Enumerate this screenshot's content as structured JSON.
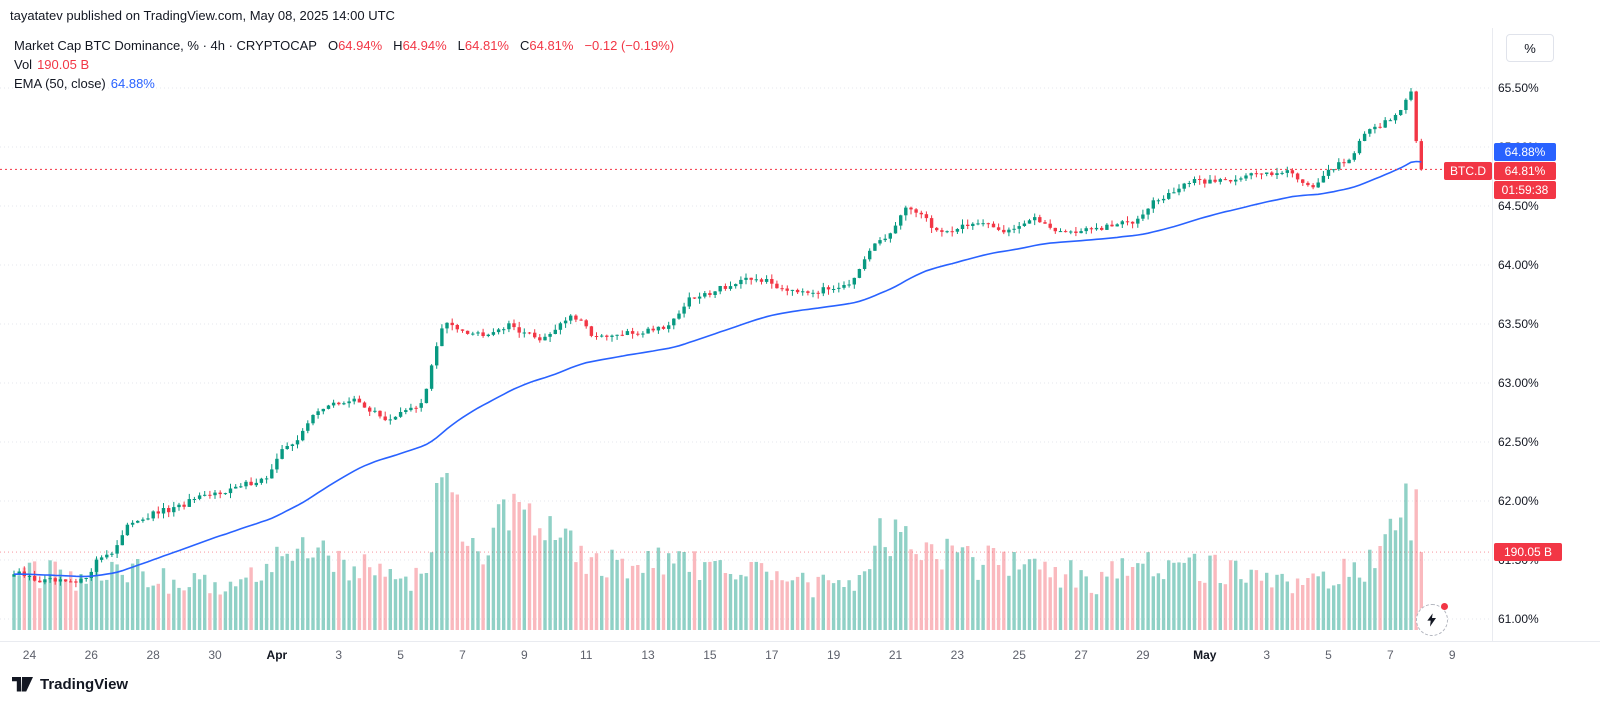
{
  "header": {
    "attribution": "tayatatev published on TradingView.com, May 08, 2025 14:00 UTC",
    "symbol_title": "Market Cap BTC Dominance, % · 4h · CRYPTOCAP",
    "ohlc": [
      {
        "label": "O",
        "value": "64.94%"
      },
      {
        "label": "H",
        "value": "64.94%"
      },
      {
        "label": "L",
        "value": "64.81%"
      },
      {
        "label": "C",
        "value": "64.81%"
      }
    ],
    "change": "−0.12 (−0.19%)",
    "vol_label": "Vol",
    "vol_value": "190.05 B",
    "ema_label": "EMA (50, close)",
    "ema_value": "64.88%"
  },
  "axis": {
    "unit_label": "%"
  },
  "badges": {
    "ema": "64.88%",
    "symbol": "BTC.D",
    "price": "64.81%",
    "countdown": "01:59:38",
    "volume": "190.05 B"
  },
  "x_axis": {
    "labels": [
      {
        "text": "24",
        "day": 0
      },
      {
        "text": "26",
        "day": 2
      },
      {
        "text": "28",
        "day": 4
      },
      {
        "text": "30",
        "day": 6
      },
      {
        "text": "Apr",
        "day": 8,
        "bold": true
      },
      {
        "text": "3",
        "day": 10
      },
      {
        "text": "5",
        "day": 12
      },
      {
        "text": "7",
        "day": 14
      },
      {
        "text": "9",
        "day": 16
      },
      {
        "text": "11",
        "day": 18
      },
      {
        "text": "13",
        "day": 20
      },
      {
        "text": "15",
        "day": 22
      },
      {
        "text": "17",
        "day": 24
      },
      {
        "text": "19",
        "day": 26
      },
      {
        "text": "21",
        "day": 28
      },
      {
        "text": "23",
        "day": 30
      },
      {
        "text": "25",
        "day": 32
      },
      {
        "text": "27",
        "day": 34
      },
      {
        "text": "29",
        "day": 36
      },
      {
        "text": "May",
        "day": 38,
        "bold": true
      },
      {
        "text": "3",
        "day": 40
      },
      {
        "text": "5",
        "day": 42
      },
      {
        "text": "7",
        "day": 44
      },
      {
        "text": "9",
        "day": 46
      }
    ]
  },
  "footer": {
    "brand": "TradingView"
  },
  "chart_data": {
    "type": "candlestick",
    "title": "Market Cap BTC Dominance",
    "symbol": "CRYPTOCAP:BTC.D",
    "interval": "4h",
    "unit": "%",
    "ohlc_current": {
      "o": 64.94,
      "h": 64.94,
      "l": 64.81,
      "c": 64.81,
      "change": -0.12,
      "change_pct": -0.19
    },
    "ema": {
      "period": 50,
      "value": 64.88,
      "color": "#2962ff"
    },
    "volume_current_b": 190.05,
    "colors": {
      "up": "#089981",
      "down": "#f23645",
      "vol_up": "rgba(8,153,129,0.45)",
      "vol_down": "rgba(242,54,69,0.35)",
      "price_line": "#f23645"
    },
    "y_axis": {
      "min": 61.0,
      "max": 65.5,
      "tick_step": 0.5,
      "grid": "dotted",
      "position": "right",
      "labels": [
        {
          "text": "65.50%",
          "value": 65.5
        },
        {
          "text": "65.00%",
          "value": 65.0
        },
        {
          "text": "64.50%",
          "value": 64.5
        },
        {
          "text": "64.00%",
          "value": 64.0
        },
        {
          "text": "63.50%",
          "value": 63.5
        },
        {
          "text": "63.00%",
          "value": 63.0
        },
        {
          "text": "62.50%",
          "value": 62.5
        },
        {
          "text": "62.00%",
          "value": 62.0
        },
        {
          "text": "61.50%",
          "value": 61.5
        },
        {
          "text": "61.00%",
          "value": 61.0
        }
      ]
    },
    "candles_per_day": 6,
    "anchor_dates": [
      "Mar 24",
      "Mar 25",
      "Mar 26",
      "Mar 27",
      "Mar 28",
      "Mar 29",
      "Mar 30",
      "Mar 31",
      "Apr 1",
      "Apr 2",
      "Apr 3",
      "Apr 4",
      "Apr 5",
      "Apr 6",
      "Apr 7",
      "Apr 8",
      "Apr 9",
      "Apr 10",
      "Apr 11",
      "Apr 12",
      "Apr 13",
      "Apr 14",
      "Apr 15",
      "Apr 16",
      "Apr 17",
      "Apr 18",
      "Apr 19",
      "Apr 20",
      "Apr 21",
      "Apr 22",
      "Apr 23",
      "Apr 24",
      "Apr 25",
      "Apr 26",
      "Apr 27",
      "Apr 28",
      "Apr 29",
      "Apr 30",
      "May 1",
      "May 2",
      "May 3",
      "May 4",
      "May 5",
      "May 6",
      "May 7",
      "May 8"
    ],
    "daily_close_anchors": [
      61.38,
      61.32,
      61.3,
      61.55,
      61.85,
      61.92,
      62.02,
      62.1,
      62.18,
      62.5,
      62.8,
      62.85,
      62.7,
      62.78,
      63.5,
      63.42,
      63.48,
      63.38,
      63.55,
      63.38,
      63.42,
      63.48,
      63.72,
      63.82,
      63.88,
      63.8,
      63.78,
      63.85,
      64.2,
      64.48,
      64.28,
      64.35,
      64.3,
      64.38,
      64.28,
      64.3,
      64.36,
      64.55,
      64.7,
      64.72,
      64.76,
      64.8,
      64.68,
      64.88,
      65.18,
      65.3
    ],
    "daily_volume_anchors_b": [
      150,
      135,
      128,
      155,
      150,
      120,
      112,
      118,
      135,
      185,
      195,
      165,
      128,
      122,
      350,
      205,
      310,
      295,
      195,
      158,
      148,
      165,
      160,
      148,
      138,
      118,
      108,
      112,
      215,
      225,
      185,
      168,
      172,
      178,
      138,
      118,
      148,
      158,
      162,
      148,
      128,
      108,
      118,
      138,
      158,
      290
    ],
    "final_candles": {
      "closes": [
        65.4,
        65.47,
        65.05,
        64.81
      ],
      "peak_high": 65.5
    },
    "notable_points": [
      {
        "date": "Apr 7",
        "event": "spike high",
        "value": 63.9
      },
      {
        "date": "May 8",
        "event": "cycle high",
        "value": 65.5
      },
      {
        "date": "May 8",
        "event": "last close",
        "value": 64.81
      }
    ]
  }
}
